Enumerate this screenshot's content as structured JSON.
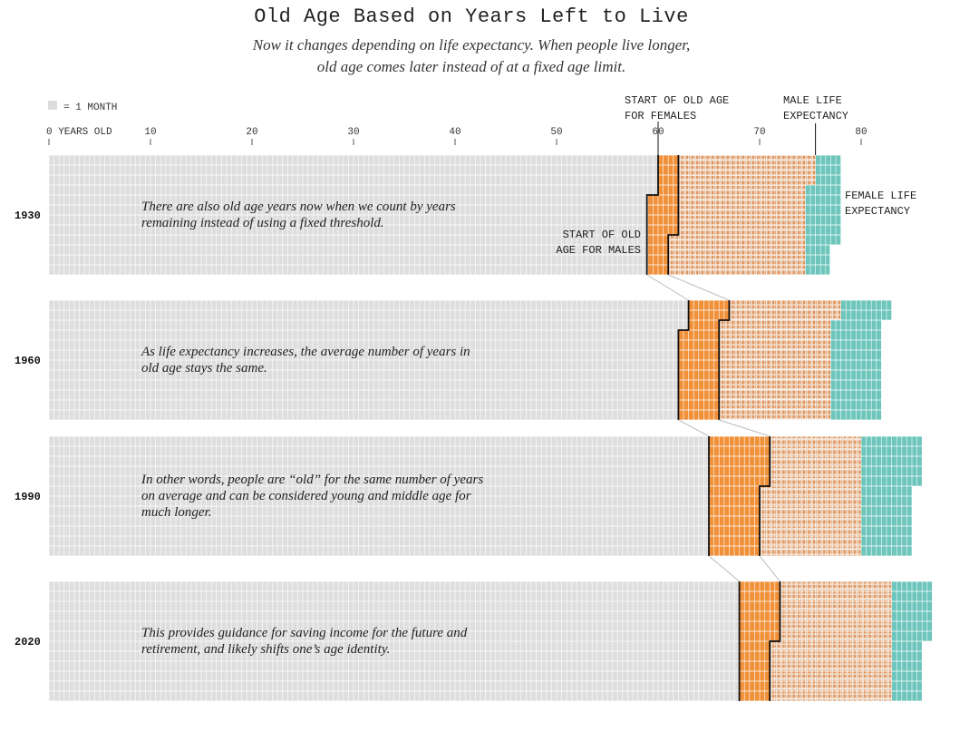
{
  "title": "Old Age Based on Years Left to Live",
  "subtitle_lines": [
    "Now it changes depending on life expectancy. When people live longer,",
    "old age comes later instead of at a fixed age limit."
  ],
  "legend": {
    "label": "= 1 MONTH",
    "swatch_color": "#dcdcdc"
  },
  "colors": {
    "pre_old_age": "#dedede",
    "grid_line": "#ffffff",
    "gap_orange": "#f0913a",
    "old_age_pattern_orange": "#e0935a",
    "old_age_pattern_bg": "#f0e3d6",
    "after_male": "#6dc5bc",
    "boundary_line": "#111111"
  },
  "chart_data": {
    "type": "waffle",
    "unit": "1 month",
    "x_axis": {
      "ticks": [
        0,
        10,
        20,
        30,
        40,
        50,
        60,
        70,
        80
      ],
      "tick_labels": [
        "0 YEARS OLD",
        "10",
        "20",
        "30",
        "40",
        "50",
        "60",
        "70",
        "80"
      ],
      "range": [
        0,
        87
      ]
    },
    "annotations": {
      "start_old_age_females": "START OF OLD AGE FOR FEMALES",
      "start_old_age_females_lines": [
        "START OF OLD AGE",
        "FOR FEMALES"
      ],
      "male_life_expectancy": "MALE LIFE EXPECTANCY",
      "male_life_expectancy_lines": [
        "MALE LIFE",
        "EXPECTANCY"
      ],
      "female_life_expectancy": "FEMALE LIFE EXPECTANCY",
      "female_life_expectancy_lines": [
        "FEMALE LIFE",
        "EXPECTANCY"
      ],
      "start_old_age_males": "START OF OLD AGE FOR MALES",
      "start_old_age_males_lines": [
        "START OF OLD",
        "AGE FOR MALES"
      ]
    },
    "series": [
      {
        "year": "1930",
        "text_lines": [
          "There are also old age years now when we count by years",
          "remaining instead of using a fixed threshold."
        ],
        "female_old_age_start": 60.0,
        "male_old_age_start": 58.9,
        "male_life_expectancy": 75.5,
        "female_life_expectancy": 78.0,
        "row_lengths": [
          78.0,
          78.0,
          78.0,
          78.0,
          78.0,
          78.0,
          78.0,
          78.0,
          78.0,
          76.9,
          76.9,
          76.9
        ],
        "row_gap_start": [
          60.0,
          60.0,
          60.0,
          60.0,
          58.9,
          58.9,
          58.9,
          58.9,
          58.9,
          58.9,
          58.9,
          58.9
        ],
        "row_pattern_start": [
          62.0,
          62.0,
          62.0,
          62.0,
          62.0,
          62.0,
          62.0,
          62.0,
          61.0,
          61.0,
          61.0,
          61.0
        ],
        "row_pattern_end": [
          75.5,
          75.5,
          75.5,
          74.5,
          74.5,
          74.5,
          74.5,
          74.5,
          74.5,
          74.5,
          74.5,
          74.5
        ]
      },
      {
        "year": "1960",
        "text_lines": [
          "As life expectancy increases, the average number of years in",
          "old age stays the same."
        ],
        "female_old_age_start": 63.0,
        "male_old_age_start": 62.0,
        "male_life_expectancy": 77.0,
        "female_life_expectancy": 83.0,
        "row_lengths": [
          83.0,
          83.0,
          82.0,
          82.0,
          82.0,
          82.0,
          82.0,
          82.0,
          82.0,
          82.0,
          82.0,
          82.0
        ],
        "row_gap_start": [
          63.0,
          63.0,
          63.0,
          62.0,
          62.0,
          62.0,
          62.0,
          62.0,
          62.0,
          62.0,
          62.0,
          62.0
        ],
        "row_pattern_start": [
          67.0,
          67.0,
          66.0,
          66.0,
          66.0,
          66.0,
          66.0,
          66.0,
          66.0,
          66.0,
          66.0,
          66.0
        ],
        "row_pattern_end": [
          78.0,
          78.0,
          77.0,
          77.0,
          77.0,
          77.0,
          77.0,
          77.0,
          77.0,
          77.0,
          77.0,
          77.0
        ]
      },
      {
        "year": "1990",
        "text_lines": [
          "In other words, people are “old” for the same number of years",
          "on average and can be considered young and middle age for",
          "much longer."
        ],
        "female_old_age_start": 65.0,
        "male_old_age_start": 65.0,
        "male_life_expectancy": 80.0,
        "female_life_expectancy": 86.0,
        "row_lengths": [
          86.0,
          86.0,
          86.0,
          86.0,
          86.0,
          85.0,
          85.0,
          85.0,
          85.0,
          85.0,
          85.0,
          85.0
        ],
        "row_gap_start": [
          65.0,
          65.0,
          65.0,
          65.0,
          65.0,
          65.0,
          65.0,
          65.0,
          65.0,
          65.0,
          65.0,
          65.0
        ],
        "row_pattern_start": [
          71.0,
          71.0,
          71.0,
          71.0,
          71.0,
          70.0,
          70.0,
          70.0,
          70.0,
          70.0,
          70.0,
          70.0
        ],
        "row_pattern_end": [
          80.0,
          80.0,
          80.0,
          80.0,
          80.0,
          80.0,
          80.0,
          80.0,
          80.0,
          80.0,
          80.0,
          80.0
        ]
      },
      {
        "year": "2020",
        "text_lines": [
          "This provides guidance for saving income for the future and",
          "retirement, and likely shifts one’s age identity."
        ],
        "female_old_age_start": 68.0,
        "male_old_age_start": 68.0,
        "male_life_expectancy": 83.0,
        "female_life_expectancy": 87.0,
        "row_lengths": [
          87.0,
          87.0,
          87.0,
          87.0,
          87.0,
          87.0,
          86.0,
          86.0,
          86.0,
          86.0,
          86.0,
          86.0
        ],
        "row_gap_start": [
          68.0,
          68.0,
          68.0,
          68.0,
          68.0,
          68.0,
          68.0,
          68.0,
          68.0,
          68.0,
          68.0,
          68.0
        ],
        "row_pattern_start": [
          72.0,
          72.0,
          72.0,
          72.0,
          72.0,
          72.0,
          71.0,
          71.0,
          71.0,
          71.0,
          71.0,
          71.0
        ],
        "row_pattern_end": [
          83.0,
          83.0,
          83.0,
          83.0,
          83.0,
          83.0,
          83.0,
          83.0,
          83.0,
          83.0,
          83.0,
          83.0
        ]
      }
    ]
  }
}
